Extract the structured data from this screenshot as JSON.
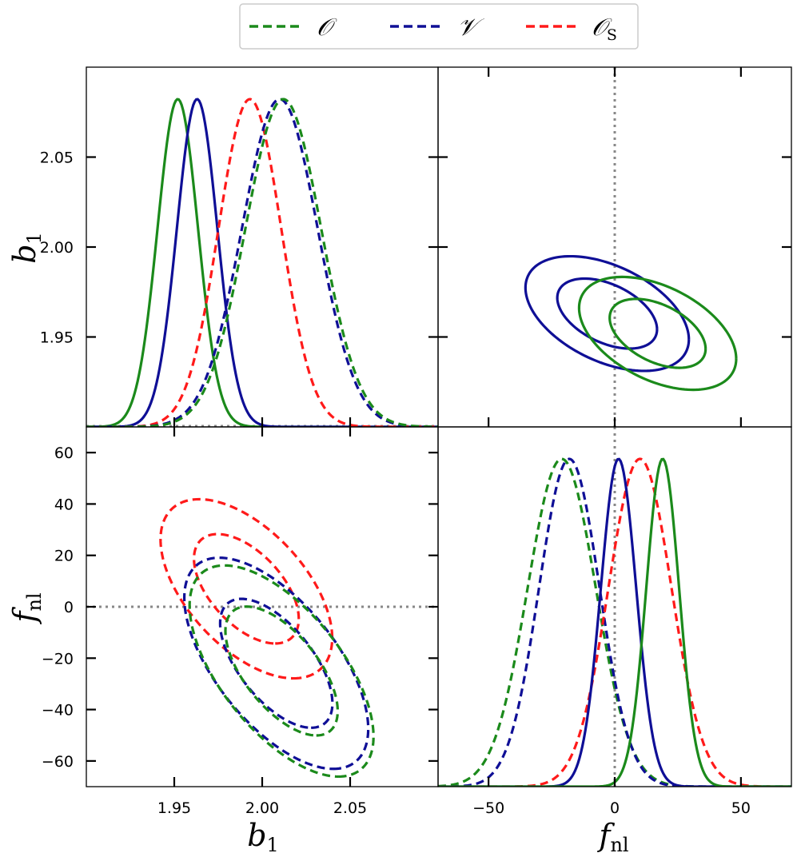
{
  "chart_data": {
    "type": "corner-plot",
    "colors": {
      "O": "#1b8a1b",
      "V": "#0f0f96",
      "OS": "#ff1a1a",
      "reference": "#888888"
    },
    "legend": {
      "placement": "top-center",
      "entries": [
        {
          "key": "O",
          "label": "𝒪",
          "sub": "",
          "color": "#1b8a1b",
          "style": "dashed"
        },
        {
          "key": "V",
          "label": "𝒱",
          "sub": "",
          "color": "#0f0f96",
          "style": "dashed"
        },
        {
          "key": "OS",
          "label": "𝒪",
          "sub": "S",
          "color": "#ff1a1a",
          "style": "dashed"
        }
      ]
    },
    "parameters": [
      {
        "name": "b",
        "sub": "1",
        "range": [
          1.9,
          2.1
        ],
        "ticks": [
          1.95,
          2.0,
          2.05
        ],
        "tick_labels": [
          "1.95",
          "2.00",
          "2.05"
        ]
      },
      {
        "name": "f",
        "sub": "nl",
        "range": [
          -70,
          70
        ],
        "ticks": [
          -50,
          0,
          50
        ],
        "tick_labels": [
          "−50",
          "0",
          "50"
        ]
      }
    ],
    "fnl_axis": {
      "range": [
        -70,
        70
      ],
      "ticks": [
        -60,
        -40,
        -20,
        0,
        20,
        40,
        60
      ],
      "tick_labels": [
        "−60",
        "−40",
        "−20",
        "0",
        "20",
        "40",
        "60"
      ]
    },
    "b1_left_axis": {
      "ticks": [
        1.95,
        2.0,
        2.05
      ],
      "tick_labels": [
        "1.95",
        "2.00",
        "2.05"
      ]
    },
    "reference_fnl": 0,
    "b1_marginals": [
      {
        "key": "O",
        "style": "solid",
        "mean": 1.952,
        "sigma": 0.0115
      },
      {
        "key": "V",
        "style": "solid",
        "mean": 1.963,
        "sigma": 0.0115
      },
      {
        "key": "OS",
        "style": "dashed",
        "mean": 1.993,
        "sigma": 0.0178
      },
      {
        "key": "V",
        "style": "dashed",
        "mean": 2.01,
        "sigma": 0.0215
      },
      {
        "key": "O",
        "style": "dashed",
        "mean": 2.012,
        "sigma": 0.0215
      }
    ],
    "fnl_marginals": [
      {
        "key": "O",
        "style": "dashed",
        "mean": -21,
        "sigma": 13.5
      },
      {
        "key": "V",
        "style": "dashed",
        "mean": -18,
        "sigma": 12.0
      },
      {
        "key": "OS",
        "style": "dashed",
        "mean": 10,
        "sigma": 12.5
      },
      {
        "key": "V",
        "style": "solid",
        "mean": 1.5,
        "sigma": 7.0
      },
      {
        "key": "O",
        "style": "solid",
        "mean": 19,
        "sigma": 6.5
      }
    ],
    "contours_b1_fnl": [
      {
        "key": "OS",
        "style": "dashed",
        "mean_b1": 1.991,
        "mean_fnl": 7,
        "sigma_b1": 0.0196,
        "sigma_fnl": 14.0,
        "rho": -0.55
      },
      {
        "key": "V",
        "style": "dashed",
        "mean_b1": 2.008,
        "mean_fnl": -22,
        "sigma_b1": 0.021,
        "sigma_fnl": 16.5,
        "rho": -0.62
      },
      {
        "key": "O",
        "style": "dashed",
        "mean_b1": 2.011,
        "mean_fnl": -25,
        "sigma_b1": 0.021,
        "sigma_fnl": 16.5,
        "rho": -0.62
      }
    ],
    "contours_fnl_b1": [
      {
        "key": "V",
        "style": "solid",
        "mean_fnl": -3,
        "mean_b1": 1.963,
        "sigma_fnl": 13.0,
        "sigma_b1": 0.0128,
        "rho": -0.45
      },
      {
        "key": "O",
        "style": "solid",
        "mean_fnl": 17,
        "mean_b1": 1.952,
        "sigma_fnl": 12.5,
        "sigma_b1": 0.0126,
        "rho": -0.45
      }
    ],
    "contour_levels": [
      1.52,
      2.49
    ]
  }
}
